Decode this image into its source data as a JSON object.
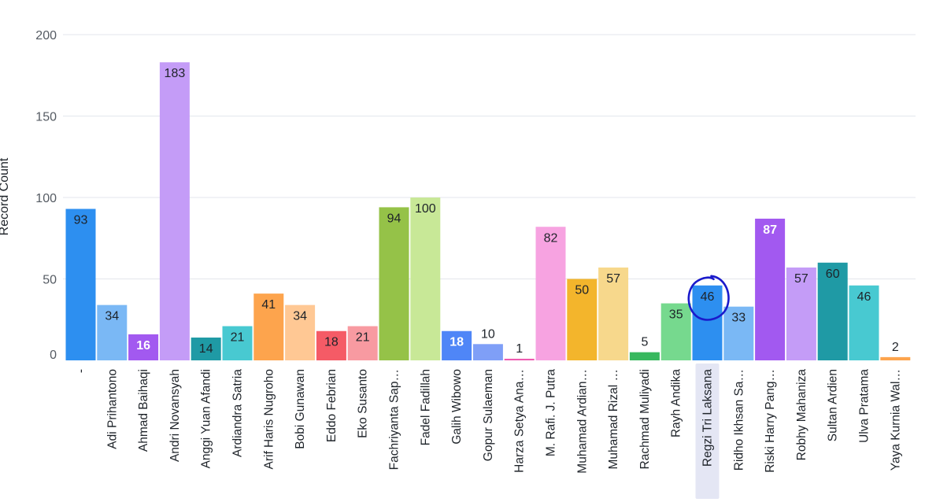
{
  "chart_data": {
    "type": "bar",
    "ylabel": "Record Count",
    "ylim": [
      0,
      200
    ],
    "yticks": [
      0,
      50,
      100,
      150,
      200
    ],
    "grid": true,
    "categories": [
      "-",
      "Adi Prihantono",
      "Ahmad Baihaqi",
      "Andri Novansyah",
      "Anggi Yuan Afandi",
      "Ardiandra Satria",
      "Arif Haris Nugroho",
      "Bobi Gunawan",
      "Eddo Febrian",
      "Eko Susanto",
      "Fachriyanta Sap…",
      "Fadel Fadillah",
      "Galih Wibowo",
      "Gopur Sulaeman",
      "Harza Setya Ana…",
      "M. Rafi. J. Putra",
      "Muhamad Ardian…",
      "Muhamad Rizal …",
      "Rachmad Muliyadi",
      "Rayh Andika",
      "Regzi Tri Laksana",
      "Ridho Ikhsan Sa…",
      "Riski Harry Pang…",
      "Robhy Mahaniza",
      "Sultan Ardien",
      "Ulva Pratama",
      "Yaya Kurnia Wal…"
    ],
    "values": [
      93,
      34,
      16,
      183,
      14,
      21,
      41,
      34,
      18,
      21,
      94,
      100,
      18,
      10,
      1,
      82,
      50,
      57,
      5,
      35,
      46,
      33,
      87,
      57,
      60,
      46,
      2
    ],
    "colors": [
      "#2d8ff0",
      "#7ab8f5",
      "#a259f0",
      "#c49cf7",
      "#1f9aa5",
      "#48c9d1",
      "#fda44d",
      "#ffc894",
      "#f55b66",
      "#f89aa1",
      "#95c248",
      "#c8e897",
      "#4f86f7",
      "#7f9ff7",
      "#ee5bb0",
      "#f7a3e1",
      "#f3b52c",
      "#f7d88c",
      "#37b85e",
      "#76d98e",
      "#2d8ff0",
      "#7ab8f5",
      "#a259f0",
      "#c49cf7",
      "#1f9aa5",
      "#48c9d1",
      "#fda44d"
    ],
    "label_colors": [
      "#1e2329",
      "#1e2329",
      "#ffffff",
      "#1e2329",
      "#1e2329",
      "#1e2329",
      "#1e2329",
      "#1e2329",
      "#1e2329",
      "#1e2329",
      "#1e2329",
      "#1e2329",
      "#ffffff",
      "#1e2329",
      "#1e2329",
      "#1e2329",
      "#1e2329",
      "#1e2329",
      "#1e2329",
      "#1e2329",
      "#1e2329",
      "#1e2329",
      "#ffffff",
      "#1e2329",
      "#1e2329",
      "#1e2329",
      "#1e2329"
    ],
    "bold_labels": [
      2,
      12,
      22
    ],
    "highlighted_category": "Regzi Tri Laksana",
    "annotation": "hand-drawn circle around 46"
  },
  "colors": {
    "grid": "#e3e6ec",
    "highlight_band": "#e4e6f4",
    "annotation_ink": "#1a1acb"
  }
}
